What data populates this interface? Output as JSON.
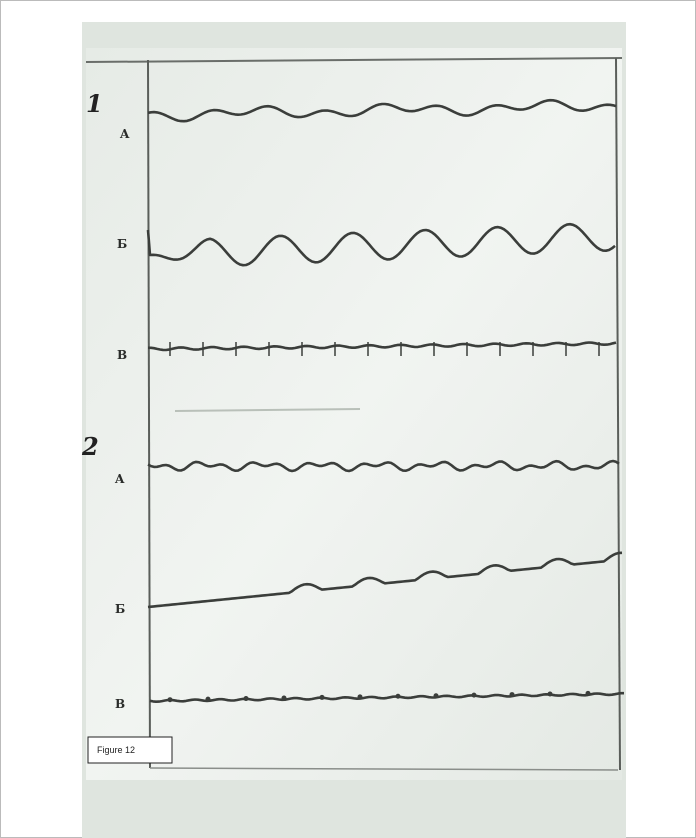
{
  "panels": [
    {
      "number": "1",
      "traces": [
        "A",
        "Б",
        "В"
      ]
    },
    {
      "number": "2",
      "traces": [
        "A",
        "Б",
        "В"
      ]
    }
  ],
  "caption": "Figure 12"
}
